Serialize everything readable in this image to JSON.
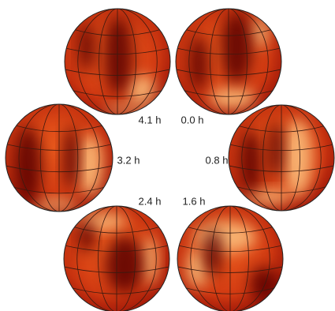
{
  "panels": [
    {
      "label": "0.0 h"
    },
    {
      "label": "0.8 h"
    },
    {
      "label": "1.6 h"
    },
    {
      "label": "2.4 h"
    },
    {
      "label": "3.2 h"
    },
    {
      "label": "4.1 h"
    }
  ]
}
